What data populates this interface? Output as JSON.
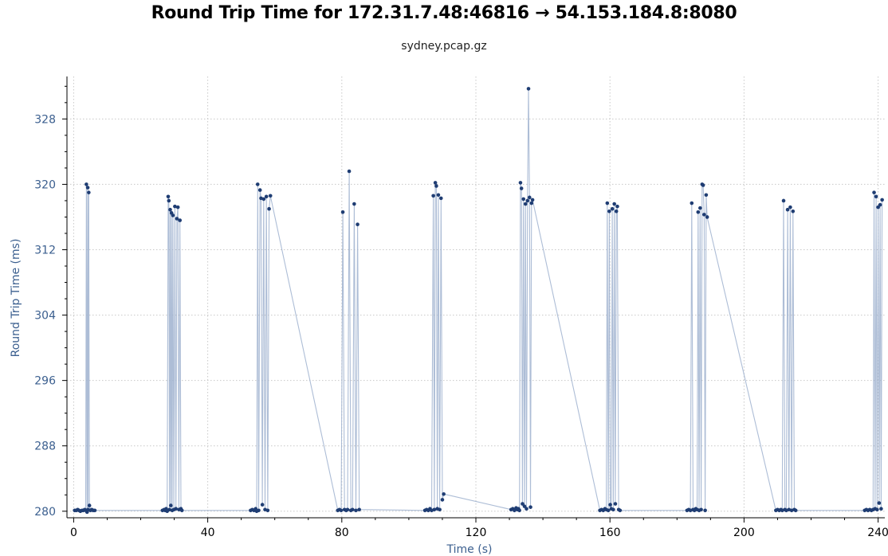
{
  "chart_data": {
    "type": "scatter",
    "title": "Round Trip Time for 172.31.7.48:46816 → 54.153.184.8:8080",
    "subtitle": "sydney.pcap.gz",
    "xlabel": "Time (s)",
    "ylabel": "Round Trip Time (ms)",
    "xlim": [
      -2,
      242
    ],
    "ylim": [
      279.2,
      333.2
    ],
    "xticks": [
      0,
      40,
      80,
      120,
      160,
      200,
      240
    ],
    "yticks": [
      280,
      288,
      296,
      304,
      312,
      320,
      328
    ],
    "grid": true,
    "colors": {
      "marker": "#1f3d73",
      "stem": "#9fb2cf",
      "axis_text": "#3b5f8f",
      "grid": "#c8c8c8"
    },
    "series": [
      {
        "x": [
          0.3,
          0.8,
          1.2,
          1.6,
          2.0,
          2.5,
          2.9,
          3.3,
          3.6,
          3.8,
          4.0,
          4.2,
          4.3,
          4.5,
          4.7,
          5.0,
          5.4,
          5.8,
          6.3,
          26.5,
          27.0,
          27.3,
          27.6,
          27.9,
          28.2,
          28.4,
          28.6,
          28.8,
          29.0,
          29.2,
          29.4,
          29.6,
          29.9,
          30.2,
          30.5,
          30.8,
          31.1,
          31.4,
          31.7,
          32.0,
          32.3,
          52.8,
          53.3,
          53.8,
          54.3,
          54.6,
          54.9,
          55.2,
          55.6,
          55.9,
          56.3,
          56.7,
          57.1,
          57.5,
          57.9,
          58.3,
          58.7,
          78.8,
          79.3,
          79.8,
          80.3,
          80.8,
          81.3,
          81.7,
          82.2,
          82.7,
          83.2,
          83.7,
          84.2,
          84.7,
          85.2,
          104.8,
          105.3,
          105.8,
          106.3,
          106.8,
          107.3,
          107.6,
          107.9,
          108.2,
          108.5,
          108.8,
          109.2,
          109.6,
          110.0,
          110.4,
          130.5,
          131.0,
          131.5,
          132.0,
          132.4,
          132.7,
          133.0,
          133.3,
          133.6,
          133.9,
          134.2,
          134.5,
          134.8,
          135.1,
          135.4,
          135.7,
          136.0,
          136.3,
          136.6,
          136.9,
          157.0,
          157.5,
          158.0,
          158.5,
          158.9,
          159.2,
          159.5,
          159.8,
          160.1,
          160.4,
          160.7,
          161.0,
          161.3,
          161.6,
          161.9,
          162.2,
          162.6,
          163.0,
          183.0,
          183.5,
          184.0,
          184.4,
          184.8,
          185.2,
          185.6,
          186.0,
          186.3,
          186.6,
          186.9,
          187.2,
          187.5,
          187.8,
          188.1,
          188.4,
          188.7,
          189.0,
          209.5,
          210.0,
          210.5,
          211.0,
          211.4,
          211.8,
          212.2,
          212.6,
          213.0,
          213.4,
          213.8,
          214.2,
          214.6,
          215.0,
          215.4,
          236.0,
          236.5,
          237.0,
          237.5,
          238.0,
          238.5,
          238.8,
          239.1,
          239.4,
          239.7,
          240.0,
          240.3,
          240.6,
          240.9,
          241.2
        ],
        "y": [
          280.1,
          280.1,
          280.2,
          280.1,
          280.0,
          280.1,
          280.1,
          280.2,
          280.1,
          320.0,
          279.9,
          319.6,
          280.2,
          319.0,
          280.7,
          280.1,
          280.2,
          280.1,
          280.1,
          280.1,
          280.2,
          280.1,
          280.3,
          280.0,
          318.5,
          318.0,
          280.2,
          316.9,
          280.7,
          316.5,
          280.1,
          316.2,
          280.2,
          317.3,
          280.3,
          315.8,
          317.2,
          280.2,
          315.6,
          280.3,
          280.1,
          280.1,
          280.2,
          280.1,
          280.3,
          280.0,
          320.0,
          280.1,
          319.3,
          318.3,
          280.8,
          318.2,
          280.2,
          318.5,
          280.1,
          317.0,
          318.6,
          280.1,
          280.2,
          280.1,
          316.6,
          280.2,
          280.1,
          280.2,
          321.6,
          280.1,
          280.2,
          317.6,
          280.1,
          315.1,
          280.2,
          280.1,
          280.2,
          280.1,
          280.3,
          280.1,
          318.6,
          280.2,
          320.2,
          319.8,
          280.3,
          318.7,
          280.2,
          318.3,
          281.4,
          282.1,
          280.2,
          280.3,
          280.1,
          280.4,
          280.2,
          280.3,
          280.1,
          320.2,
          319.5,
          280.9,
          318.2,
          280.6,
          317.6,
          280.3,
          318.0,
          331.7,
          318.4,
          280.5,
          317.7,
          318.1,
          280.1,
          280.2,
          280.1,
          280.3,
          280.2,
          317.7,
          280.1,
          316.7,
          280.8,
          280.3,
          317.0,
          280.2,
          317.6,
          280.9,
          316.7,
          317.3,
          280.2,
          280.1,
          280.1,
          280.2,
          280.1,
          317.7,
          280.2,
          280.1,
          280.3,
          280.2,
          316.6,
          280.1,
          317.1,
          280.2,
          320.0,
          319.9,
          316.3,
          280.1,
          318.7,
          316.0,
          280.1,
          280.2,
          280.1,
          280.2,
          280.1,
          318.0,
          280.2,
          280.1,
          316.9,
          280.2,
          317.2,
          280.1,
          316.7,
          280.2,
          280.1,
          280.1,
          280.2,
          280.1,
          280.2,
          280.1,
          280.2,
          319.0,
          280.3,
          318.5,
          280.2,
          317.2,
          281.0,
          317.5,
          280.3,
          318.1
        ]
      }
    ]
  }
}
